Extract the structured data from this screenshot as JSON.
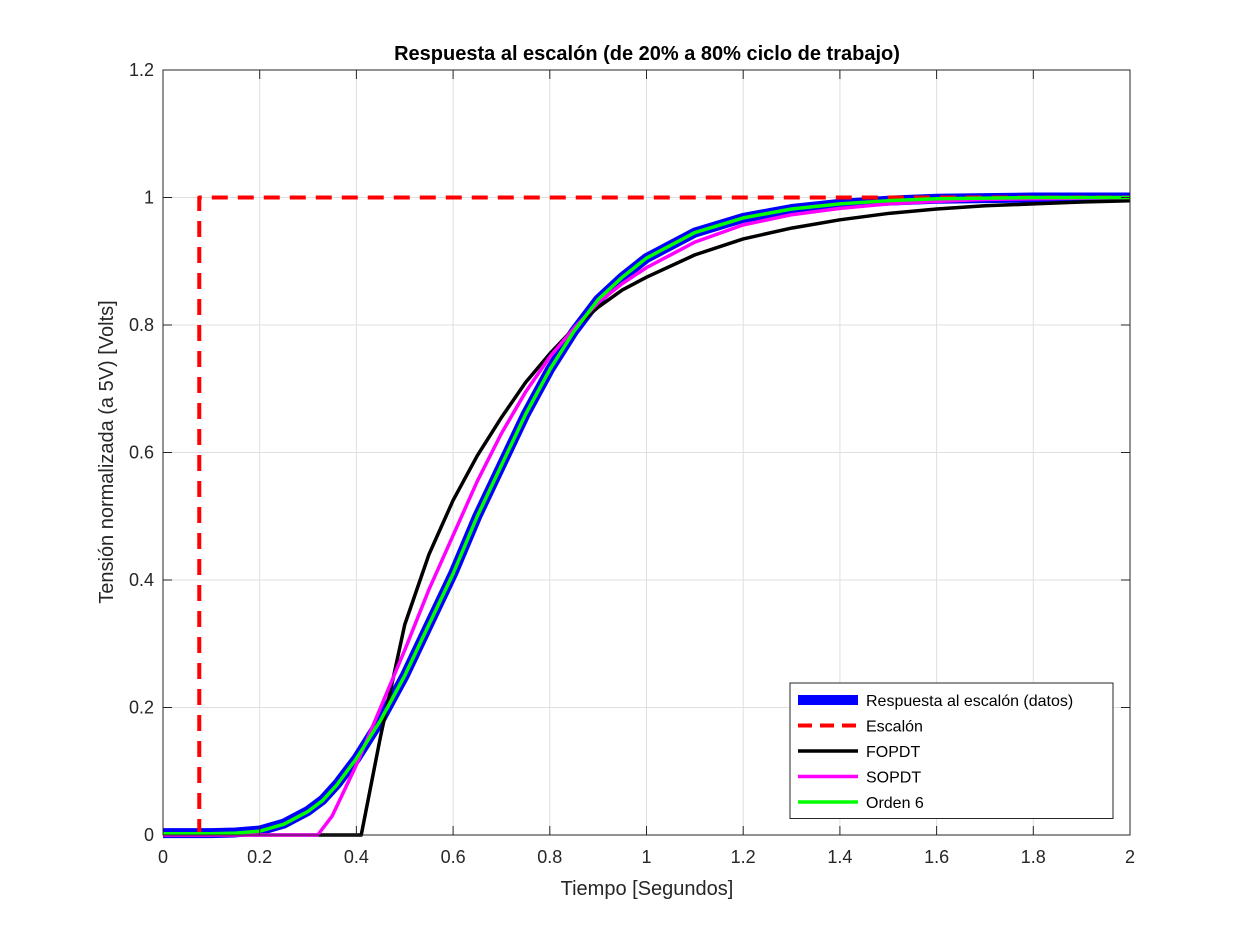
{
  "chart_data": {
    "type": "line",
    "title": "Respuesta al escalón (de 20% a 80% ciclo de trabajo)",
    "xlabel": "Tiempo [Segundos]",
    "ylabel": "Tensión normalizada (a 5V) [Volts]",
    "xlim": [
      0,
      2
    ],
    "ylim": [
      0,
      1.2
    ],
    "xticks": [
      0,
      0.2,
      0.4,
      0.6,
      0.8,
      1,
      1.2,
      1.4,
      1.6,
      1.8,
      2
    ],
    "xtick_labels": [
      "0",
      "0.2",
      "0.4",
      "0.6",
      "0.8",
      "1",
      "1.2",
      "1.4",
      "1.6",
      "1.8",
      "2"
    ],
    "yticks": [
      0,
      0.2,
      0.4,
      0.6,
      0.8,
      1,
      1.2
    ],
    "ytick_labels": [
      "0",
      "0.2",
      "0.4",
      "0.6",
      "0.8",
      "1",
      "1.2"
    ],
    "grid": true,
    "legend_position": "bottom-right",
    "series": [
      {
        "name": "Respuesta al escalón (datos)",
        "color": "#0000ff",
        "style": "solid-thick",
        "x": [
          0,
          0.1,
          0.15,
          0.2,
          0.25,
          0.3,
          0.33,
          0.36,
          0.4,
          0.45,
          0.5,
          0.55,
          0.6,
          0.65,
          0.7,
          0.75,
          0.8,
          0.85,
          0.9,
          0.95,
          1.0,
          1.1,
          1.2,
          1.3,
          1.4,
          1.5,
          1.6,
          1.7,
          1.8,
          1.9,
          2.0
        ],
        "y": [
          0.003,
          0.003,
          0.004,
          0.007,
          0.018,
          0.038,
          0.055,
          0.08,
          0.12,
          0.18,
          0.25,
          0.33,
          0.41,
          0.5,
          0.58,
          0.66,
          0.73,
          0.79,
          0.84,
          0.875,
          0.905,
          0.945,
          0.968,
          0.982,
          0.99,
          0.995,
          0.998,
          0.999,
          1.0,
          1.0,
          1.0
        ]
      },
      {
        "name": "Escalón",
        "color": "#ff0000",
        "style": "dashed",
        "x": [
          0.075,
          0.075,
          2.0
        ],
        "y": [
          0,
          1,
          1
        ]
      },
      {
        "name": "FOPDT",
        "color": "#000000",
        "style": "solid",
        "x": [
          0,
          0.41,
          0.45,
          0.5,
          0.55,
          0.6,
          0.65,
          0.7,
          0.75,
          0.8,
          0.85,
          0.9,
          0.95,
          1.0,
          1.1,
          1.2,
          1.3,
          1.4,
          1.5,
          1.6,
          1.7,
          1.8,
          1.9,
          2.0
        ],
        "y": [
          0,
          0,
          0.155,
          0.33,
          0.44,
          0.525,
          0.595,
          0.655,
          0.71,
          0.755,
          0.795,
          0.828,
          0.855,
          0.875,
          0.91,
          0.935,
          0.952,
          0.965,
          0.975,
          0.982,
          0.987,
          0.99,
          0.993,
          0.995
        ]
      },
      {
        "name": "SOPDT",
        "color": "#ff00ff",
        "style": "solid",
        "x": [
          0,
          0.32,
          0.35,
          0.4,
          0.45,
          0.5,
          0.55,
          0.6,
          0.65,
          0.7,
          0.75,
          0.8,
          0.85,
          0.9,
          0.95,
          1.0,
          1.1,
          1.2,
          1.3,
          1.4,
          1.5,
          1.6,
          1.7,
          1.8,
          1.9,
          2.0
        ],
        "y": [
          0,
          0,
          0.03,
          0.11,
          0.2,
          0.29,
          0.385,
          0.47,
          0.555,
          0.63,
          0.695,
          0.75,
          0.795,
          0.835,
          0.865,
          0.89,
          0.93,
          0.957,
          0.973,
          0.983,
          0.99,
          0.994,
          0.997,
          0.998,
          0.999,
          1.0
        ]
      },
      {
        "name": "Orden 6",
        "color": "#00ff00",
        "style": "solid",
        "x": [
          0,
          0.1,
          0.15,
          0.2,
          0.25,
          0.3,
          0.33,
          0.36,
          0.4,
          0.45,
          0.5,
          0.55,
          0.6,
          0.65,
          0.7,
          0.75,
          0.8,
          0.85,
          0.9,
          0.95,
          1.0,
          1.1,
          1.2,
          1.3,
          1.4,
          1.5,
          1.6,
          1.7,
          1.8,
          1.9,
          2.0
        ],
        "y": [
          0.002,
          0.002,
          0.003,
          0.006,
          0.017,
          0.037,
          0.054,
          0.079,
          0.12,
          0.18,
          0.25,
          0.33,
          0.41,
          0.5,
          0.58,
          0.66,
          0.73,
          0.79,
          0.84,
          0.875,
          0.905,
          0.945,
          0.968,
          0.982,
          0.99,
          0.995,
          0.998,
          0.999,
          1.0,
          1.0,
          1.0
        ]
      }
    ]
  }
}
